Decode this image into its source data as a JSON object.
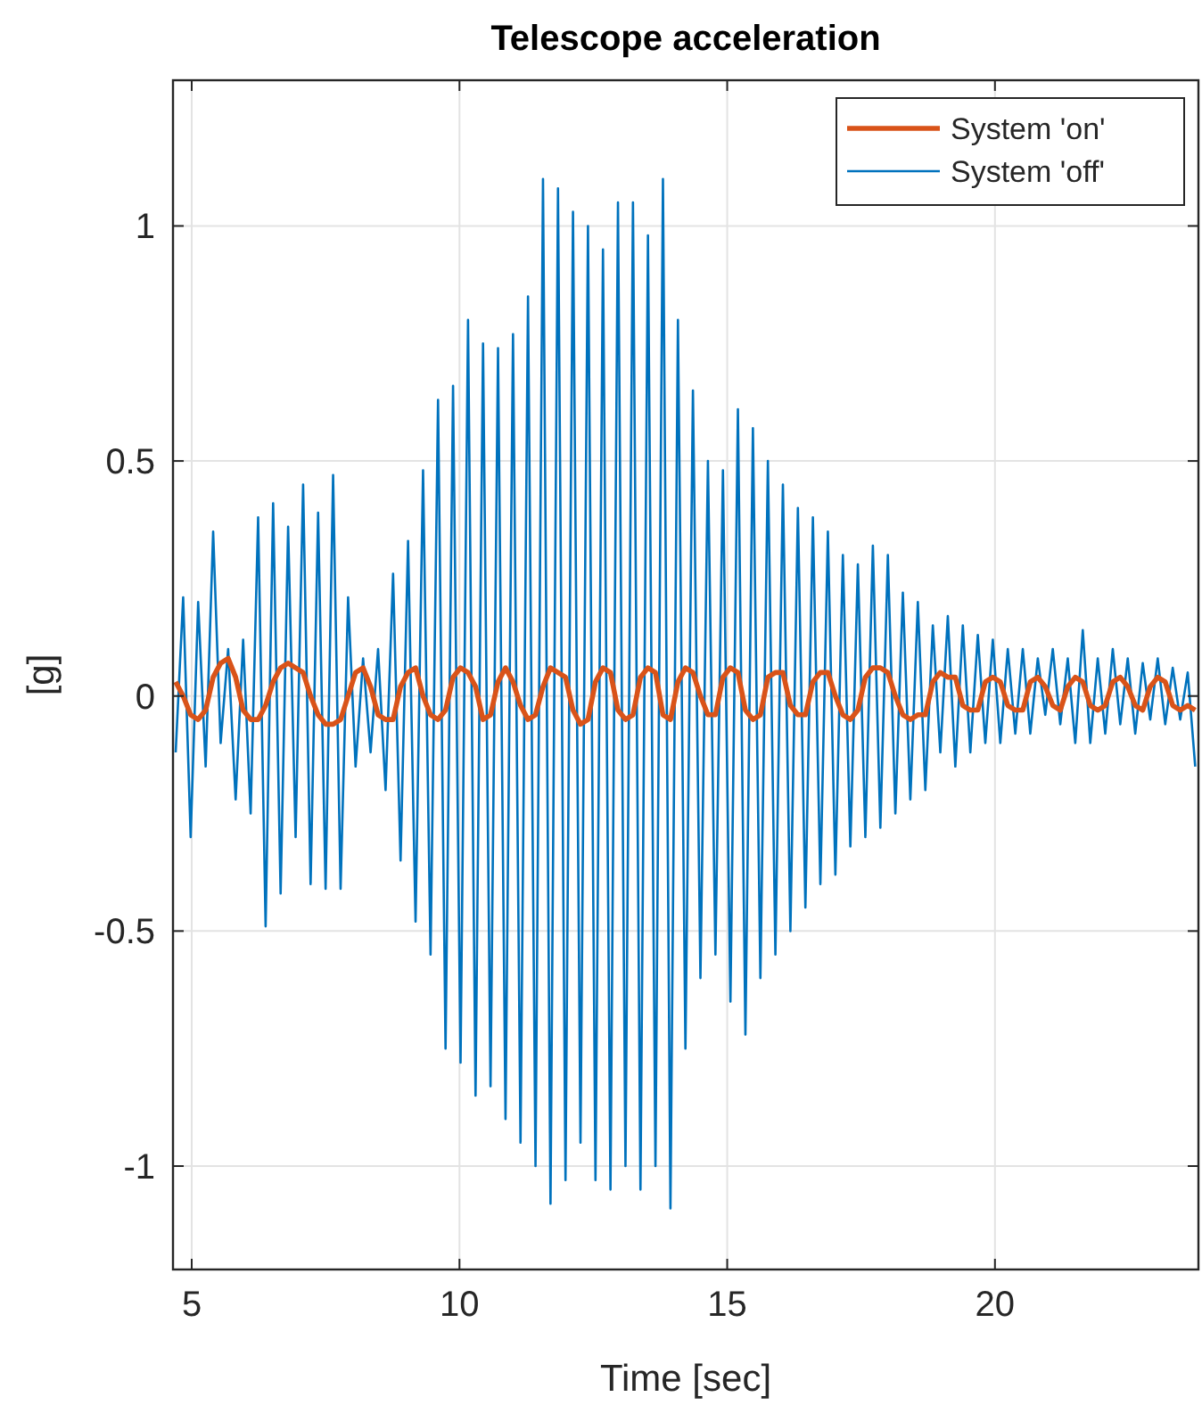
{
  "chart_data": {
    "type": "line",
    "title": "Telescope acceleration",
    "xlabel": "Time [sec]",
    "ylabel": "[g]",
    "xlim": [
      4.65,
      23.8
    ],
    "ylim": [
      -1.22,
      1.31
    ],
    "xticks": [
      5,
      10,
      15,
      20
    ],
    "yticks": [
      -1,
      -0.5,
      0,
      0.5,
      1
    ],
    "grid": true,
    "legend": "top right",
    "x": [
      4.7,
      4.84,
      4.98,
      5.12,
      5.26,
      5.4,
      5.54,
      5.68,
      5.82,
      5.96,
      6.1,
      6.24,
      6.38,
      6.52,
      6.66,
      6.8,
      6.94,
      7.08,
      7.22,
      7.36,
      7.5,
      7.64,
      7.78,
      7.92,
      8.06,
      8.2,
      8.34,
      8.48,
      8.62,
      8.76,
      8.9,
      9.04,
      9.18,
      9.32,
      9.46,
      9.6,
      9.74,
      9.88,
      10.02,
      10.16,
      10.3,
      10.44,
      10.58,
      10.72,
      10.86,
      11.0,
      11.14,
      11.28,
      11.42,
      11.56,
      11.7,
      11.84,
      11.98,
      12.12,
      12.26,
      12.4,
      12.54,
      12.68,
      12.82,
      12.96,
      13.1,
      13.24,
      13.38,
      13.52,
      13.66,
      13.8,
      13.94,
      14.08,
      14.22,
      14.36,
      14.5,
      14.64,
      14.78,
      14.92,
      15.06,
      15.2,
      15.34,
      15.48,
      15.62,
      15.76,
      15.9,
      16.04,
      16.18,
      16.32,
      16.46,
      16.6,
      16.74,
      16.88,
      17.02,
      17.16,
      17.3,
      17.44,
      17.58,
      17.72,
      17.86,
      18.0,
      18.14,
      18.28,
      18.42,
      18.56,
      18.7,
      18.84,
      18.98,
      19.12,
      19.26,
      19.4,
      19.54,
      19.68,
      19.82,
      19.96,
      20.1,
      20.24,
      20.38,
      20.52,
      20.66,
      20.8,
      20.94,
      21.08,
      21.22,
      21.36,
      21.5,
      21.64,
      21.78,
      21.92,
      22.06,
      22.2,
      22.34,
      22.48,
      22.62,
      22.76,
      22.9,
      23.04,
      23.18,
      23.32,
      23.46,
      23.6,
      23.74
    ],
    "series": [
      {
        "name": "System 'on'",
        "color": "#d95319",
        "values": [
          0.03,
          0.0,
          -0.04,
          -0.05,
          -0.03,
          0.04,
          0.07,
          0.08,
          0.04,
          -0.03,
          -0.05,
          -0.05,
          -0.02,
          0.03,
          0.06,
          0.07,
          0.06,
          0.05,
          0.0,
          -0.04,
          -0.06,
          -0.06,
          -0.05,
          0.0,
          0.05,
          0.06,
          0.02,
          -0.04,
          -0.05,
          -0.05,
          0.02,
          0.05,
          0.06,
          0.0,
          -0.04,
          -0.05,
          -0.03,
          0.04,
          0.06,
          0.05,
          0.02,
          -0.05,
          -0.04,
          0.03,
          0.06,
          0.03,
          -0.02,
          -0.05,
          -0.04,
          0.02,
          0.06,
          0.05,
          0.04,
          -0.03,
          -0.06,
          -0.05,
          0.03,
          0.06,
          0.05,
          -0.03,
          -0.05,
          -0.04,
          0.04,
          0.06,
          0.05,
          -0.04,
          -0.05,
          0.03,
          0.06,
          0.05,
          0.0,
          -0.04,
          -0.04,
          0.04,
          0.06,
          0.05,
          -0.03,
          -0.05,
          -0.04,
          0.04,
          0.05,
          0.05,
          -0.02,
          -0.04,
          -0.04,
          0.03,
          0.05,
          0.05,
          0.0,
          -0.04,
          -0.05,
          -0.03,
          0.04,
          0.06,
          0.06,
          0.05,
          0.0,
          -0.04,
          -0.05,
          -0.04,
          -0.04,
          0.03,
          0.05,
          0.04,
          0.04,
          -0.02,
          -0.03,
          -0.03,
          0.03,
          0.04,
          0.03,
          -0.02,
          -0.03,
          -0.03,
          0.03,
          0.04,
          0.02,
          -0.02,
          -0.03,
          0.02,
          0.04,
          0.03,
          -0.02,
          -0.03,
          -0.02,
          0.03,
          0.04,
          0.02,
          -0.02,
          -0.03,
          0.02,
          0.04,
          0.03,
          -0.02,
          -0.03,
          -0.02,
          -0.03
        ]
      },
      {
        "name": "System 'off'",
        "color": "#0072bd",
        "values": [
          -0.12,
          0.21,
          -0.3,
          0.2,
          -0.15,
          0.35,
          -0.1,
          0.1,
          -0.22,
          0.12,
          -0.25,
          0.38,
          -0.49,
          0.41,
          -0.42,
          0.36,
          -0.3,
          0.45,
          -0.4,
          0.39,
          -0.41,
          0.47,
          -0.41,
          0.21,
          -0.15,
          0.08,
          -0.12,
          0.1,
          -0.2,
          0.26,
          -0.35,
          0.33,
          -0.48,
          0.48,
          -0.55,
          0.63,
          -0.75,
          0.66,
          -0.78,
          0.8,
          -0.85,
          0.75,
          -0.83,
          0.74,
          -0.9,
          0.77,
          -0.95,
          0.85,
          -1.0,
          1.1,
          -1.08,
          1.08,
          -1.03,
          1.03,
          -0.95,
          1.0,
          -1.03,
          0.95,
          -1.05,
          1.05,
          -1.0,
          1.05,
          -1.05,
          0.98,
          -1.0,
          1.1,
          -1.09,
          0.8,
          -0.75,
          0.65,
          -0.6,
          0.5,
          -0.55,
          0.48,
          -0.65,
          0.61,
          -0.72,
          0.57,
          -0.6,
          0.5,
          -0.55,
          0.45,
          -0.5,
          0.4,
          -0.45,
          0.38,
          -0.4,
          0.35,
          -0.38,
          0.3,
          -0.32,
          0.28,
          -0.3,
          0.32,
          -0.28,
          0.3,
          -0.25,
          0.22,
          -0.22,
          0.2,
          -0.2,
          0.15,
          -0.12,
          0.17,
          -0.15,
          0.15,
          -0.12,
          0.13,
          -0.1,
          0.12,
          -0.1,
          0.1,
          -0.08,
          0.1,
          -0.08,
          0.08,
          -0.04,
          0.1,
          -0.06,
          0.08,
          -0.1,
          0.14,
          -0.1,
          0.08,
          -0.08,
          0.1,
          -0.06,
          0.08,
          -0.08,
          0.07,
          -0.05,
          0.08,
          -0.06,
          0.06,
          -0.05,
          0.05,
          -0.15
        ]
      }
    ]
  }
}
